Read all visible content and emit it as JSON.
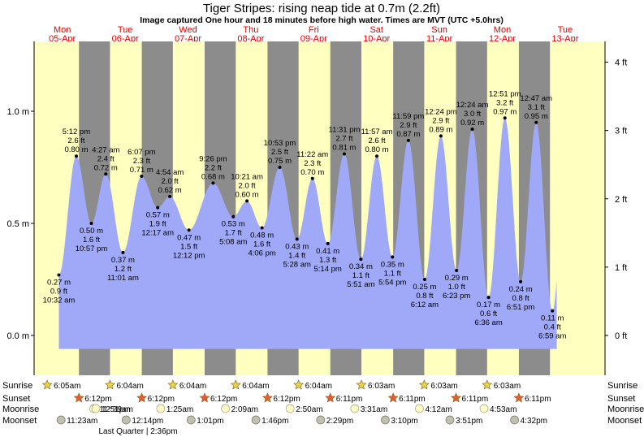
{
  "title": "Tiger Stripes: rising  neap tide at 0.7m (2.2ft)",
  "subtitle": "Image captured One hour and 18 minutes before high water. Times are MVT (UTC +5.0hrs)",
  "colors": {
    "day": "#ffffc0",
    "night": "#8c8c8c",
    "tide": "#a0a8f8",
    "date_label": "#e00000",
    "sun_icon": "#e8d050",
    "sunset_icon": "#e06030",
    "moon_icon": "#fffcc8",
    "moonset_icon": "#c0c0b0"
  },
  "axes": {
    "left_ticks": [
      {
        "value": 0.0,
        "label": "0.0 m"
      },
      {
        "value": 0.5,
        "label": "0.5 m"
      },
      {
        "value": 1.0,
        "label": "1.0 m"
      }
    ],
    "right_ticks": [
      {
        "value": 0,
        "label": "0 ft"
      },
      {
        "value": 1,
        "label": "1 ft"
      },
      {
        "value": 2,
        "label": "2 ft"
      },
      {
        "value": 3,
        "label": "3 ft"
      },
      {
        "value": 4,
        "label": "4 ft"
      }
    ],
    "ylim_m": [
      -0.11,
      1.27
    ]
  },
  "days": [
    {
      "weekday": "Mon",
      "date": "05-Apr"
    },
    {
      "weekday": "Tue",
      "date": "06-Apr"
    },
    {
      "weekday": "Wed",
      "date": "07-Apr"
    },
    {
      "weekday": "Thu",
      "date": "08-Apr"
    },
    {
      "weekday": "Fri",
      "date": "09-Apr"
    },
    {
      "weekday": "Sat",
      "date": "10-Apr"
    },
    {
      "weekday": "Sun",
      "date": "11-Apr"
    },
    {
      "weekday": "Mon",
      "date": "12-Apr"
    },
    {
      "weekday": "Tue",
      "date": "13-Apr"
    }
  ],
  "chart_data": {
    "type": "area",
    "title": "Tiger Stripes: rising  neap tide at 0.7m (2.2ft)",
    "ylabel_left": "m",
    "ylabel_right": "ft",
    "x_unit": "days from Mon 05-Apr 00:00",
    "series": [
      {
        "values": [
          {
            "day": 0,
            "time": "10:32 am",
            "m": 0.27,
            "ft": "0.9 ft",
            "label_m": "0.27 m",
            "type": "low"
          },
          {
            "day": 0,
            "time": "5:12 pm",
            "m": 0.8,
            "ft": "2.6 ft",
            "label_m": "0.80 m",
            "type": "high"
          },
          {
            "day": 0,
            "time": "10:57 pm",
            "m": 0.5,
            "ft": "1.6 ft",
            "label_m": "0.50 m",
            "type": "low"
          },
          {
            "day": 1,
            "time": "4:27 am",
            "m": 0.72,
            "ft": "2.4 ft",
            "label_m": "0.72 m",
            "type": "high"
          },
          {
            "day": 1,
            "time": "11:01 am",
            "m": 0.37,
            "ft": "1.2 ft",
            "label_m": "0.37 m",
            "type": "low"
          },
          {
            "day": 1,
            "time": "6:07 pm",
            "m": 0.71,
            "ft": "2.3 ft",
            "label_m": "0.71 m",
            "type": "high"
          },
          {
            "day": 2,
            "time": "12:17 am",
            "m": 0.57,
            "ft": "1.9 ft",
            "label_m": "0.57 m",
            "type": "low"
          },
          {
            "day": 2,
            "time": "4:54 am",
            "m": 0.62,
            "ft": "2.0 ft",
            "label_m": "0.62 m",
            "type": "high"
          },
          {
            "day": 2,
            "time": "12:12 pm",
            "m": 0.47,
            "ft": "1.5 ft",
            "label_m": "0.47 m",
            "type": "low"
          },
          {
            "day": 2,
            "time": "9:26 pm",
            "m": 0.68,
            "ft": "2.2 ft",
            "label_m": "0.68 m",
            "type": "high"
          },
          {
            "day": 3,
            "time": "5:08 am",
            "m": 0.53,
            "ft": "1.7 ft",
            "label_m": "0.53 m",
            "type": "low"
          },
          {
            "day": 3,
            "time": "10:21 am",
            "m": 0.6,
            "ft": "2.0 ft",
            "label_m": "0.60 m",
            "type": "high"
          },
          {
            "day": 3,
            "time": "4:06 pm",
            "m": 0.48,
            "ft": "1.6 ft",
            "label_m": "0.48 m",
            "type": "low"
          },
          {
            "day": 3,
            "time": "10:53 pm",
            "m": 0.75,
            "ft": "2.5 ft",
            "label_m": "0.75 m",
            "type": "high"
          },
          {
            "day": 4,
            "time": "5:28 am",
            "m": 0.43,
            "ft": "1.4 ft",
            "label_m": "0.43 m",
            "type": "low"
          },
          {
            "day": 4,
            "time": "11:22 am",
            "m": 0.7,
            "ft": "2.3 ft",
            "label_m": "0.70 m",
            "type": "high"
          },
          {
            "day": 4,
            "time": "5:14 pm",
            "m": 0.41,
            "ft": "1.3 ft",
            "label_m": "0.41 m",
            "type": "low"
          },
          {
            "day": 4,
            "time": "11:31 pm",
            "m": 0.81,
            "ft": "2.7 ft",
            "label_m": "0.81 m",
            "type": "high"
          },
          {
            "day": 5,
            "time": "5:51 am",
            "m": 0.34,
            "ft": "1.1 ft",
            "label_m": "0.34 m",
            "type": "low"
          },
          {
            "day": 5,
            "time": "11:57 am",
            "m": 0.8,
            "ft": "2.6 ft",
            "label_m": "0.80 m",
            "type": "high"
          },
          {
            "day": 5,
            "time": "5:54 pm",
            "m": 0.35,
            "ft": "1.1 ft",
            "label_m": "0.35 m",
            "type": "low"
          },
          {
            "day": 5,
            "time": "11:59 pm",
            "m": 0.87,
            "ft": "2.9 ft",
            "label_m": "0.87 m",
            "type": "high"
          },
          {
            "day": 6,
            "time": "6:12 am",
            "m": 0.25,
            "ft": "0.8 ft",
            "label_m": "0.25 m",
            "type": "low"
          },
          {
            "day": 6,
            "time": "12:24 pm",
            "m": 0.89,
            "ft": "2.9 ft",
            "label_m": "0.89 m",
            "type": "high"
          },
          {
            "day": 6,
            "time": "6:23 pm",
            "m": 0.29,
            "ft": "1.0 ft",
            "label_m": "0.29 m",
            "type": "low"
          },
          {
            "day": 7,
            "time": "12:24 am",
            "m": 0.92,
            "ft": "3.0 ft",
            "label_m": "0.92 m",
            "type": "high"
          },
          {
            "day": 7,
            "time": "6:36 am",
            "m": 0.17,
            "ft": "0.6 ft",
            "label_m": "0.17 m",
            "type": "low"
          },
          {
            "day": 7,
            "time": "12:51 pm",
            "m": 0.97,
            "ft": "3.2 ft",
            "label_m": "0.97 m",
            "type": "high"
          },
          {
            "day": 7,
            "time": "6:51 pm",
            "m": 0.24,
            "ft": "0.8 ft",
            "label_m": "0.24 m",
            "type": "low"
          },
          {
            "day": 8,
            "time": "12:47 am",
            "m": 0.95,
            "ft": "3.1 ft",
            "label_m": "0.95 m",
            "type": "high"
          },
          {
            "day": 8,
            "time": "6:59 am",
            "m": 0.11,
            "ft": "0.4 ft",
            "label_m": "0.11 m",
            "type": "low"
          }
        ]
      }
    ],
    "plot_end_day": 8.36
  },
  "almanac": {
    "row_labels": {
      "sunrise": "Sunrise",
      "sunset": "Sunset",
      "moonrise": "Moonrise",
      "moonset": "Moonset"
    },
    "sunrise": [
      "6:05am",
      "6:04am",
      "6:04am",
      "6:04am",
      "6:04am",
      "6:03am",
      "6:03am",
      "6:03am"
    ],
    "sunset": [
      "6:12pm",
      "6:12pm",
      "6:12pm",
      "6:12pm",
      "6:11pm",
      "6:11pm",
      "6:11pm",
      "6:11pm"
    ],
    "moonrise": [
      "11:51pm",
      "12:39am",
      "1:25am",
      "2:09am",
      "2:50am",
      "3:31am",
      "4:12am",
      "4:53am"
    ],
    "moonset": [
      "11:23am",
      "12:14pm",
      "1:01pm",
      "1:46pm",
      "2:29pm",
      "3:10pm",
      "3:51pm",
      "4:32pm"
    ],
    "phase": "Last Quarter | 2:36pm"
  }
}
